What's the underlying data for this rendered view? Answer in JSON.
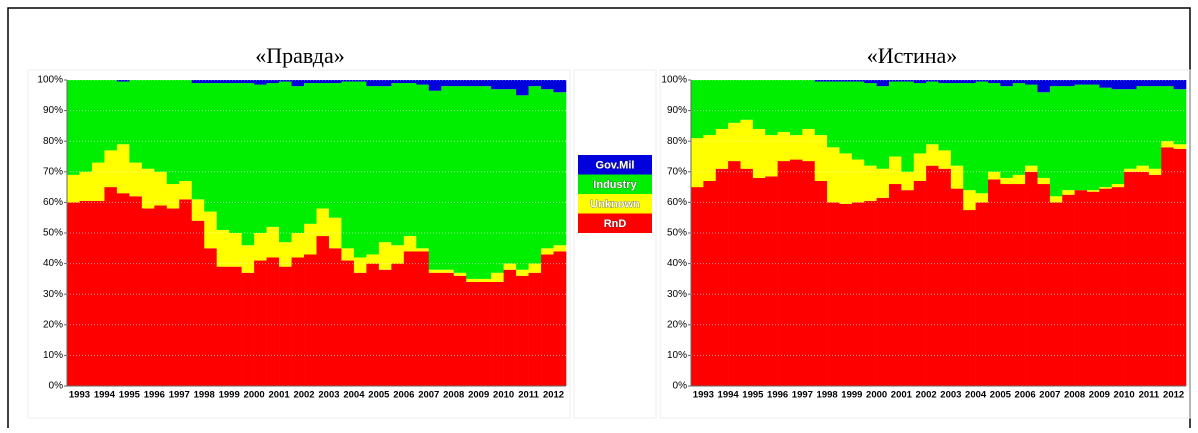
{
  "chart_data": [
    {
      "type": "stacked_bar",
      "title": "«Правда»",
      "grid": true,
      "categories": [
        "1993",
        null,
        "1994",
        null,
        "1995",
        null,
        "1996",
        null,
        "1997",
        null,
        "1998",
        null,
        "1999",
        null,
        "2000",
        null,
        "2001",
        null,
        "2002",
        null,
        "2003",
        null,
        "2004",
        null,
        "2005",
        null,
        "2006",
        null,
        "2007",
        null,
        "2008",
        null,
        "2009",
        null,
        "2010",
        null,
        "2011",
        null,
        "2012",
        null
      ],
      "ylim": [
        0,
        100
      ],
      "yticks": [
        {
          "value": 0,
          "label": "0%"
        },
        {
          "value": 10,
          "label": "10%"
        },
        {
          "value": 20,
          "label": "20%"
        },
        {
          "value": 30,
          "label": "30%"
        },
        {
          "value": 40,
          "label": "40%"
        },
        {
          "value": 50,
          "label": "50%"
        },
        {
          "value": 60,
          "label": "60%"
        },
        {
          "value": 70,
          "label": "70%"
        },
        {
          "value": 80,
          "label": "80%"
        },
        {
          "value": 90,
          "label": "90%"
        },
        {
          "value": 100,
          "label": "100%"
        }
      ],
      "series": [
        {
          "name": "RnD",
          "color": "#ff0000",
          "values": [
            60,
            60.5,
            60.5,
            65,
            63,
            62,
            58,
            59,
            58,
            61,
            54,
            45,
            39,
            39,
            37,
            41,
            42,
            39,
            42,
            43,
            49,
            45,
            41,
            37,
            40,
            38,
            40,
            44,
            44,
            37,
            37,
            36,
            34,
            34,
            34,
            38,
            36,
            37,
            43,
            44
          ]
        },
        {
          "name": "Unknown",
          "color": "#ffff00",
          "values": [
            9,
            9.5,
            12.5,
            12,
            16,
            11,
            13,
            11,
            8,
            6,
            7,
            12,
            12,
            11,
            9,
            9,
            10,
            8,
            8,
            10,
            9,
            10,
            4,
            5,
            3,
            9,
            6,
            5,
            1,
            1,
            1,
            1,
            1,
            1,
            3,
            2,
            2,
            3,
            2,
            2
          ]
        },
        {
          "name": "Industry",
          "color": "#00ee00",
          "values": [
            31,
            30,
            27,
            23,
            20.5,
            27,
            29,
            30,
            34,
            33,
            38,
            42,
            48,
            49,
            53,
            48.5,
            47,
            52.5,
            48,
            46,
            41,
            44,
            54.5,
            57.5,
            55,
            51,
            53,
            50,
            53.5,
            58.5,
            60,
            61,
            63,
            63,
            60,
            57,
            57,
            58,
            52,
            50
          ]
        },
        {
          "name": "Gov.Mil",
          "color": "#0000dd",
          "values": [
            0,
            0,
            0,
            0,
            0.5,
            0,
            0,
            0,
            0,
            0,
            1,
            1,
            1,
            1,
            1,
            1.5,
            1,
            0.5,
            2,
            1,
            1,
            1,
            0.5,
            0.5,
            2,
            2,
            1,
            1,
            1.5,
            3.5,
            2,
            2,
            2,
            2,
            3,
            3,
            5,
            2,
            3,
            4
          ]
        }
      ]
    },
    {
      "type": "stacked_bar",
      "title": "«Истина»",
      "grid": true,
      "categories": [
        "1993",
        null,
        "1994",
        null,
        "1995",
        null,
        "1996",
        null,
        "1997",
        null,
        "1998",
        null,
        "1999",
        null,
        "2000",
        null,
        "2001",
        null,
        "2002",
        null,
        "2003",
        null,
        "2004",
        null,
        "2005",
        null,
        "2006",
        null,
        "2007",
        null,
        "2008",
        null,
        "2009",
        null,
        "2010",
        null,
        "2011",
        null,
        "2012",
        null
      ],
      "ylim": [
        0,
        100
      ],
      "yticks": [
        {
          "value": 0,
          "label": "0%"
        },
        {
          "value": 10,
          "label": "10%"
        },
        {
          "value": 20,
          "label": "20%"
        },
        {
          "value": 30,
          "label": "30%"
        },
        {
          "value": 40,
          "label": "40%"
        },
        {
          "value": 50,
          "label": "50%"
        },
        {
          "value": 60,
          "label": "60%"
        },
        {
          "value": 70,
          "label": "70%"
        },
        {
          "value": 80,
          "label": "80%"
        },
        {
          "value": 90,
          "label": "90%"
        },
        {
          "value": 100,
          "label": "100%"
        }
      ],
      "series": [
        {
          "color": "#ff0000",
          "values": [
            65,
            67,
            71,
            73.5,
            71,
            68,
            68.5,
            73.5,
            74,
            73.5,
            67,
            60,
            59.5,
            60,
            60.5,
            61.5,
            66,
            64,
            67,
            72,
            71,
            64.5,
            57.5,
            60,
            67.5,
            66,
            66,
            70,
            66,
            60,
            62.5,
            64,
            63.5,
            64.5,
            65,
            70,
            70,
            69,
            78,
            77.5
          ]
        },
        {
          "color": "#ffff00",
          "values": [
            16,
            15,
            13,
            12.5,
            16,
            16,
            13.5,
            9.5,
            8,
            10.5,
            15,
            18,
            16.5,
            14,
            11.5,
            9.5,
            9,
            6,
            9,
            7,
            6,
            7.5,
            6.5,
            3,
            2.5,
            2,
            3,
            2,
            2,
            2,
            1.5,
            0,
            0.5,
            0.5,
            1,
            1,
            2,
            2,
            2,
            1.5
          ]
        },
        {
          "color": "#00ee00",
          "values": [
            19,
            18,
            16,
            14,
            13,
            16,
            18,
            17,
            18,
            16,
            17.5,
            21.5,
            23.5,
            25.5,
            27,
            27,
            24.5,
            29.5,
            23,
            20.5,
            22,
            27,
            35,
            36.5,
            29,
            30,
            30,
            26.5,
            28,
            36,
            34,
            34.5,
            34.5,
            32.5,
            31,
            26,
            26,
            27,
            18,
            18
          ]
        },
        {
          "color": "#0000dd",
          "values": [
            0,
            0,
            0,
            0,
            0,
            0,
            0,
            0,
            0,
            0,
            0.5,
            0.5,
            0.5,
            0.5,
            1,
            2,
            0.5,
            0.5,
            1,
            0.5,
            1,
            1,
            1,
            0.5,
            1,
            2,
            1,
            1.5,
            4,
            2,
            2,
            1.5,
            1.5,
            2.5,
            3,
            3,
            2,
            2,
            2,
            3
          ]
        }
      ]
    }
  ]
}
